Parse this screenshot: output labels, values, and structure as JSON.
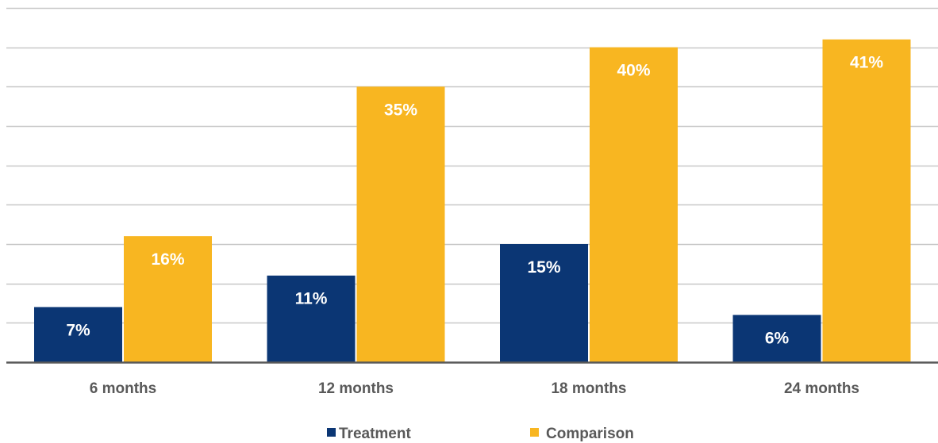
{
  "chart_data": {
    "type": "bar",
    "categories": [
      "6 months",
      "12 months",
      "18 months",
      "24 months"
    ],
    "series": [
      {
        "name": "Treatment",
        "values": [
          7,
          11,
          15,
          6
        ],
        "labels": [
          "7%",
          "11%",
          "15%",
          "6%"
        ],
        "color": "#0B3674"
      },
      {
        "name": "Comparison",
        "values": [
          16,
          35,
          40,
          41
        ],
        "labels": [
          "16%",
          "35%",
          "40%",
          "41%"
        ],
        "color": "#F8B621"
      }
    ],
    "title": "",
    "xlabel": "",
    "ylabel": "",
    "ylim": [
      0,
      45
    ],
    "ytick_step": 5,
    "ytick_labels_shown": false,
    "grid": true,
    "legend": "bottom-center",
    "colors": {
      "grid": "#C8C8C8",
      "axis": "#595959",
      "text": "#595959"
    }
  }
}
